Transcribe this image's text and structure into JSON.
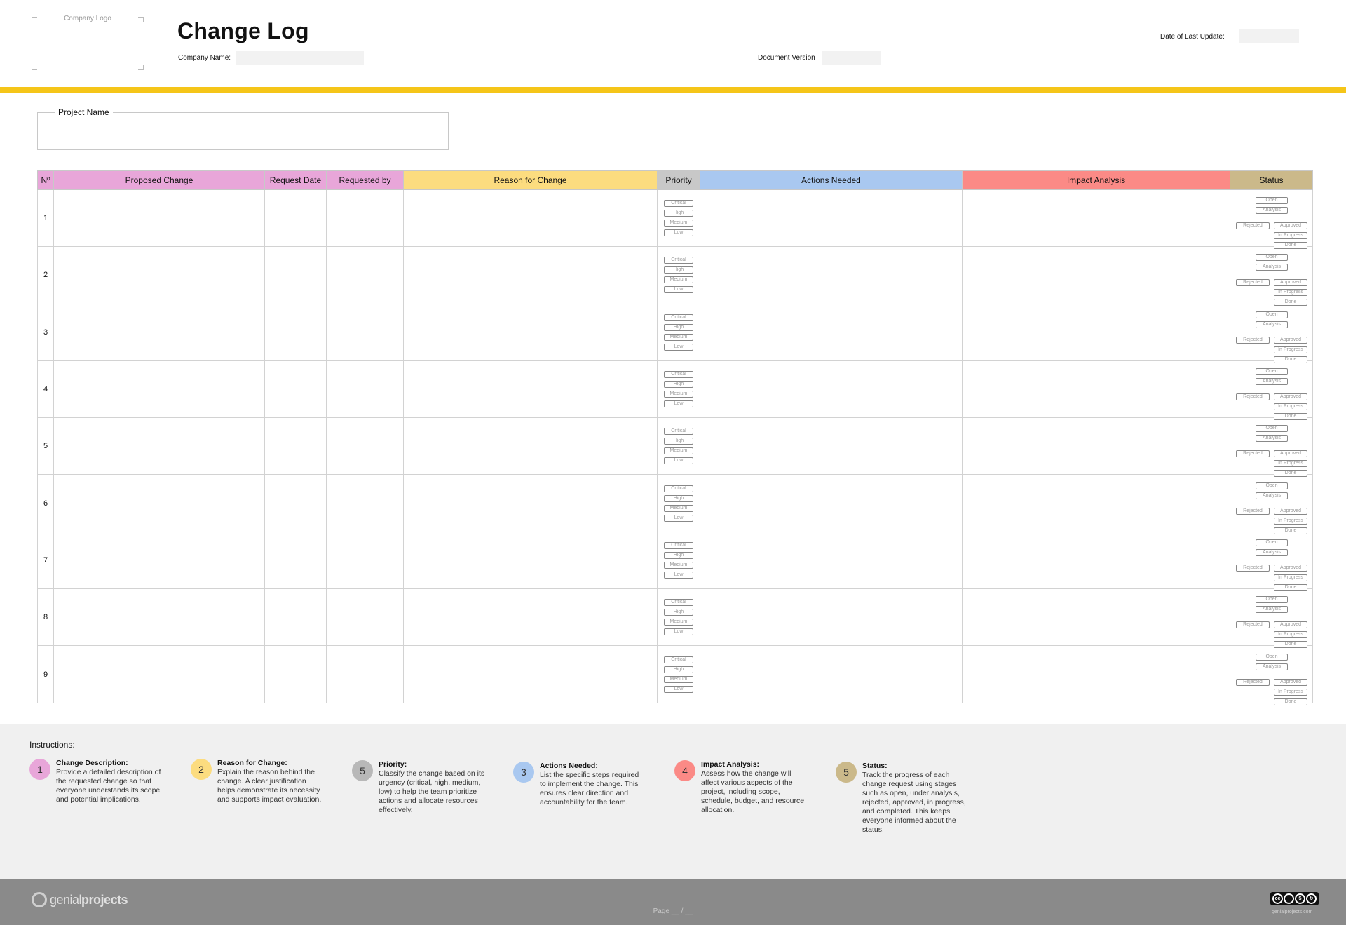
{
  "header": {
    "logo_placeholder": "Company Logo",
    "title": "Change Log",
    "company_name_label": "Company Name:",
    "document_version_label": "Document Version",
    "date_label": "Date of Last Update:"
  },
  "project": {
    "label": "Project Name"
  },
  "table": {
    "columns": [
      {
        "label": "Nº",
        "color": "#e8a6d9"
      },
      {
        "label": "Proposed Change",
        "color": "#e8a6d9"
      },
      {
        "label": "Request Date",
        "color": "#e8a6d9"
      },
      {
        "label": "Requested by",
        "color": "#e8a6d9"
      },
      {
        "label": "Reason for Change",
        "color": "#fcdc7f"
      },
      {
        "label": "Priority",
        "color": "#c8c8c8"
      },
      {
        "label": "Actions Needed",
        "color": "#a9c8f0"
      },
      {
        "label": "Impact Analysis",
        "color": "#fb8a86"
      },
      {
        "label": "Status",
        "color": "#cbb98a"
      }
    ],
    "rows": [
      "1",
      "2",
      "3",
      "4",
      "5",
      "6",
      "7",
      "8",
      "9"
    ],
    "priority_options": [
      "Critical",
      "High",
      "Medium",
      "Low"
    ],
    "status_options": {
      "open": "Open",
      "analysis": "Analysis",
      "rejected": "Rejected",
      "approved": "Approved",
      "in_progress": "In Progress",
      "done": "Done"
    }
  },
  "instructions": {
    "title": "Instructions:",
    "items": [
      {
        "num": "1",
        "color": "#e8a6d9",
        "heading": "Change Description:",
        "text": "Provide a detailed description of the requested change so that everyone understands its scope and potential implications."
      },
      {
        "num": "2",
        "color": "#fcdc7f",
        "heading": "Reason for Change:",
        "text": "Explain the reason behind the change. A clear justification helps demonstrate its necessity and supports impact evaluation."
      },
      {
        "num": "5",
        "color": "#b8b8b8",
        "heading": "Priority:",
        "text": "Classify the change based on its urgency (critical, high, medium, low) to help the team prioritize actions and allocate resources effectively."
      },
      {
        "num": "3",
        "color": "#a9c8f0",
        "heading": "Actions Needed:",
        "text": "List the specific steps required to implement the change. This ensures clear direction and accountability for the team."
      },
      {
        "num": "4",
        "color": "#fb8a86",
        "heading": "Impact Analysis:",
        "text": "Assess how the change will affect various aspects of the project, including scope, schedule, budget, and resource allocation."
      },
      {
        "num": "5",
        "color": "#cbb98a",
        "heading": "Status:",
        "text": "Track the progress of each change request using stages such as open, under analysis, rejected, approved, in progress, and completed. This keeps everyone informed about the status."
      }
    ]
  },
  "footer": {
    "brand_light": "genial",
    "brand_bold": "projects",
    "page_text": "Page __ / __",
    "license_url": "genialprojects.com"
  }
}
